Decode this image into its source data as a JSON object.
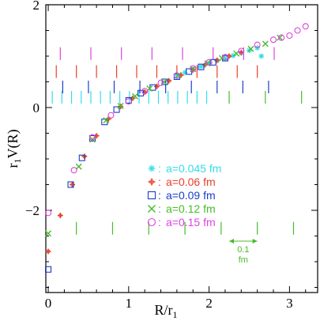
{
  "chart_data": {
    "type": "scatter",
    "xlabel_main": "R/r",
    "xlabel_sub": "1",
    "ylabel_prefix": "r",
    "ylabel_sub": "1",
    "ylabel_main": "V(R)",
    "xlim": [
      -0.03,
      3.35
    ],
    "ylim": [
      -3.6,
      2.0
    ],
    "x_ticks": [
      {
        "v": 0,
        "label": "0"
      },
      {
        "v": 1,
        "label": "1"
      },
      {
        "v": 2,
        "label": "2"
      },
      {
        "v": 3,
        "label": "3"
      }
    ],
    "y_ticks": [
      {
        "v": -2,
        "label": "−2"
      },
      {
        "v": 0,
        "label": "0"
      },
      {
        "v": 2,
        "label": "2"
      }
    ],
    "grid": false,
    "legend_position": "center-right",
    "series": [
      {
        "name": "a=0.045 fm",
        "color": "#33dde8",
        "marker": "star",
        "points": [
          [
            1.6,
            0.62
          ],
          [
            1.7,
            0.68
          ],
          [
            1.8,
            0.74
          ],
          [
            1.9,
            0.8
          ],
          [
            2.0,
            0.86
          ],
          [
            2.1,
            0.91
          ],
          [
            2.2,
            0.96
          ],
          [
            2.3,
            1.01
          ],
          [
            2.4,
            1.06
          ],
          [
            2.5,
            1.11
          ],
          [
            2.6,
            1.16
          ],
          [
            2.65,
            1.0
          ]
        ],
        "tick_y": 0.2,
        "tick_x": [
          0.05,
          0.17,
          0.29,
          0.41,
          0.53,
          0.65,
          0.77,
          0.89,
          1.01,
          1.13,
          1.25,
          1.37,
          1.49,
          1.61,
          1.73,
          1.85,
          1.97
        ]
      },
      {
        "name": "a=0.06 fm",
        "color": "#e8412a",
        "marker": "cross",
        "points": [
          [
            0.0,
            -2.8
          ],
          [
            0.15,
            -2.1
          ],
          [
            0.3,
            -1.5
          ],
          [
            0.45,
            -0.95
          ],
          [
            0.6,
            -0.55
          ],
          [
            0.75,
            -0.22
          ],
          [
            0.9,
            0.02
          ],
          [
            1.05,
            0.18
          ],
          [
            1.2,
            0.3
          ],
          [
            1.35,
            0.41
          ],
          [
            1.5,
            0.52
          ],
          [
            1.65,
            0.63
          ],
          [
            1.8,
            0.73
          ],
          [
            1.95,
            0.83
          ],
          [
            2.1,
            0.92
          ],
          [
            2.25,
            1.0
          ],
          [
            2.4,
            1.07
          ]
        ],
        "tick_y": 0.7,
        "tick_x": [
          0.1,
          0.35,
          0.6,
          0.85,
          1.1,
          1.35,
          1.6,
          1.85,
          2.1,
          2.35,
          2.6
        ]
      },
      {
        "name": "a=0.09 fm",
        "color": "#1a3ec9",
        "marker": "square",
        "points": [
          [
            0.0,
            -3.15
          ],
          [
            0.28,
            -1.5
          ],
          [
            0.42,
            -0.98
          ],
          [
            0.55,
            -0.6
          ],
          [
            0.7,
            -0.28
          ],
          [
            0.85,
            -0.04
          ],
          [
            1.0,
            0.14
          ],
          [
            1.15,
            0.28
          ],
          [
            1.3,
            0.39
          ],
          [
            1.45,
            0.5
          ],
          [
            1.6,
            0.6
          ],
          [
            1.75,
            0.7
          ],
          [
            1.9,
            0.79
          ],
          [
            2.05,
            0.88
          ],
          [
            2.2,
            0.96
          ]
        ],
        "tick_y": 0.4,
        "tick_x": [
          0.18,
          0.5,
          0.82,
          1.14,
          1.46,
          1.78,
          2.1,
          2.42,
          2.74
        ]
      },
      {
        "name": "a=0.12 fm",
        "color": "#45bd2a",
        "marker": "x",
        "points": [
          [
            0.0,
            -2.45
          ],
          [
            0.38,
            -1.15
          ],
          [
            0.55,
            -0.62
          ],
          [
            0.72,
            -0.25
          ],
          [
            0.9,
            0.03
          ],
          [
            1.08,
            0.22
          ],
          [
            1.26,
            0.37
          ],
          [
            1.44,
            0.5
          ],
          [
            1.62,
            0.63
          ],
          [
            1.8,
            0.75
          ],
          [
            1.98,
            0.86
          ],
          [
            2.16,
            0.96
          ],
          [
            2.34,
            1.05
          ],
          [
            2.52,
            1.14
          ],
          [
            2.7,
            1.24
          ],
          [
            2.88,
            1.36
          ]
        ],
        "tick_y": -2.35,
        "tick_x": [
          0.35,
          0.8,
          1.25,
          1.7,
          2.15,
          2.6,
          3.05
        ],
        "tick_y2": 0.2,
        "tick_x2": [
          2.25,
          2.7,
          3.15
        ]
      },
      {
        "name": "a=0.15 fm",
        "color": "#dd44e0",
        "marker": "circle",
        "points": [
          [
            0.0,
            -2.05
          ],
          [
            0.32,
            -1.22
          ],
          [
            0.55,
            -0.58
          ],
          [
            0.78,
            -0.15
          ],
          [
            1.0,
            0.12
          ],
          [
            1.2,
            0.32
          ],
          [
            1.4,
            0.48
          ],
          [
            1.6,
            0.62
          ],
          [
            1.8,
            0.76
          ],
          [
            2.0,
            0.88
          ],
          [
            2.2,
            0.98
          ],
          [
            2.4,
            1.1
          ],
          [
            2.6,
            1.22
          ],
          [
            2.8,
            1.32
          ],
          [
            2.9,
            1.36
          ],
          [
            3.0,
            1.4
          ],
          [
            3.1,
            1.5
          ],
          [
            3.2,
            1.58
          ]
        ],
        "tick_y": 1.05,
        "tick_x": [
          0.15,
          0.53,
          0.91,
          1.29,
          1.67,
          2.05,
          2.43,
          2.81
        ]
      }
    ],
    "annotation": {
      "text_line1": "0.1",
      "text_line2": "fm",
      "x_from": 2.25,
      "x_to": 2.6,
      "y": -2.6,
      "color": "#45bd2a"
    }
  }
}
